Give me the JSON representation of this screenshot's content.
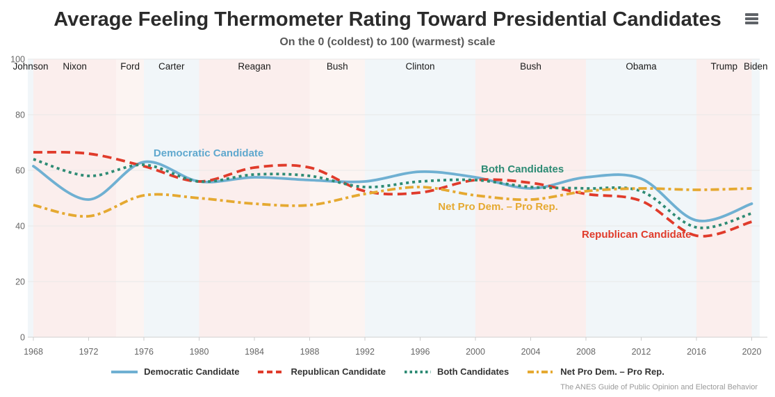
{
  "chart_data": {
    "type": "line",
    "title": "Average Feeling Thermometer Rating Toward Presidential Candidates",
    "subtitle": "On the 0 (coldest) to 100 (warmest) scale",
    "xlabel": "",
    "ylabel": "",
    "ylim": [
      0,
      100
    ],
    "xlim": [
      1967.6,
      2020.58
    ],
    "grid": true,
    "legend_position": "bottom",
    "yticks": [
      0,
      20,
      40,
      60,
      80,
      100
    ],
    "xticks": [
      1968,
      1972,
      1976,
      1980,
      1984,
      1988,
      1992,
      1996,
      2000,
      2004,
      2008,
      2012,
      2016,
      2020
    ],
    "x": [
      1968,
      1972,
      1976,
      1980,
      1984,
      1988,
      1992,
      1996,
      2000,
      2004,
      2008,
      2012,
      2016,
      2020
    ],
    "series": [
      {
        "name": "Democratic Candidate",
        "color": "#6FB0D2",
        "style": "solid",
        "values": [
          61.5,
          49.5,
          63,
          56,
          57.5,
          56.5,
          56,
          59.5,
          57.5,
          53.5,
          57.5,
          57,
          42,
          48
        ]
      },
      {
        "name": "Republican Candidate",
        "color": "#E03B2B",
        "style": "dashed",
        "values": [
          66.5,
          66,
          61.5,
          56,
          61,
          61,
          52.5,
          52,
          56.5,
          55.5,
          51.5,
          49,
          36.5,
          41.5
        ]
      },
      {
        "name": "Both Candidates",
        "color": "#2E8B74",
        "style": "dotted",
        "values": [
          64,
          58,
          62,
          56,
          58.5,
          58,
          54,
          56,
          56.5,
          54,
          53.5,
          52.5,
          39.5,
          44.5
        ]
      },
      {
        "name": "Net Pro Dem. – Pro Rep.",
        "color": "#E5A931",
        "style": "dashdot",
        "values": [
          47.5,
          43.5,
          51,
          50,
          48,
          47.5,
          51.5,
          54,
          51,
          49.5,
          52.5,
          53.5,
          53,
          53.5
        ]
      }
    ],
    "president_bands": [
      {
        "label": "Johnson",
        "start": 1967.6,
        "end": 1968,
        "party": "dem",
        "color": "#F1F6F9"
      },
      {
        "label": "Nixon",
        "start": 1968,
        "end": 1974,
        "party": "rep",
        "color": "#FBEEED"
      },
      {
        "label": "Ford",
        "start": 1974,
        "end": 1976,
        "party": "rep",
        "color": "#FCF4F2"
      },
      {
        "label": "Carter",
        "start": 1976,
        "end": 1980,
        "party": "dem",
        "color": "#F1F6F9"
      },
      {
        "label": "Reagan",
        "start": 1980,
        "end": 1988,
        "party": "rep",
        "color": "#FBEEED"
      },
      {
        "label": "Bush",
        "start": 1988,
        "end": 1992,
        "party": "rep",
        "color": "#FCF4F2"
      },
      {
        "label": "Clinton",
        "start": 1992,
        "end": 2000,
        "party": "dem",
        "color": "#F1F6F9"
      },
      {
        "label": "Bush",
        "start": 2000,
        "end": 2008,
        "party": "rep",
        "color": "#FBEEED"
      },
      {
        "label": "Obama",
        "start": 2008,
        "end": 2016,
        "party": "dem",
        "color": "#F1F6F9"
      },
      {
        "label": "Trump",
        "start": 2016,
        "end": 2020,
        "party": "rep",
        "color": "#FBEEED"
      },
      {
        "label": "Biden",
        "start": 2020,
        "end": 2020.58,
        "party": "dem",
        "color": "#F1F6F9"
      }
    ],
    "annotations": [
      {
        "text": "Democratic Candidate",
        "color": "#5FA8CE",
        "x": 1976.7,
        "y": 65.0
      },
      {
        "text": "Both Candidates",
        "color": "#2E8B74",
        "x": 2000.4,
        "y": 59.3
      },
      {
        "text": "Net Pro Dem. – Pro Rep.",
        "color": "#E5A931",
        "x": 1997.3,
        "y": 45.8
      },
      {
        "text": "Republican Candidate",
        "color": "#E03B2B",
        "x": 2007.7,
        "y": 35.8
      }
    ]
  },
  "legend": {
    "items": [
      {
        "label": "Democratic Candidate",
        "color": "#6FB0D2",
        "style": "solid"
      },
      {
        "label": "Republican Candidate",
        "color": "#E03B2B",
        "style": "dashed"
      },
      {
        "label": "Both Candidates",
        "color": "#2E8B74",
        "style": "dotted"
      },
      {
        "label": "Net Pro Dem. – Pro Rep.",
        "color": "#E5A931",
        "style": "dashdot"
      }
    ]
  },
  "footer": {
    "caption": "The ANES Guide of Public Opinion and Electoral Behavior"
  },
  "menu": {
    "icon": "hamburger-menu-icon"
  }
}
